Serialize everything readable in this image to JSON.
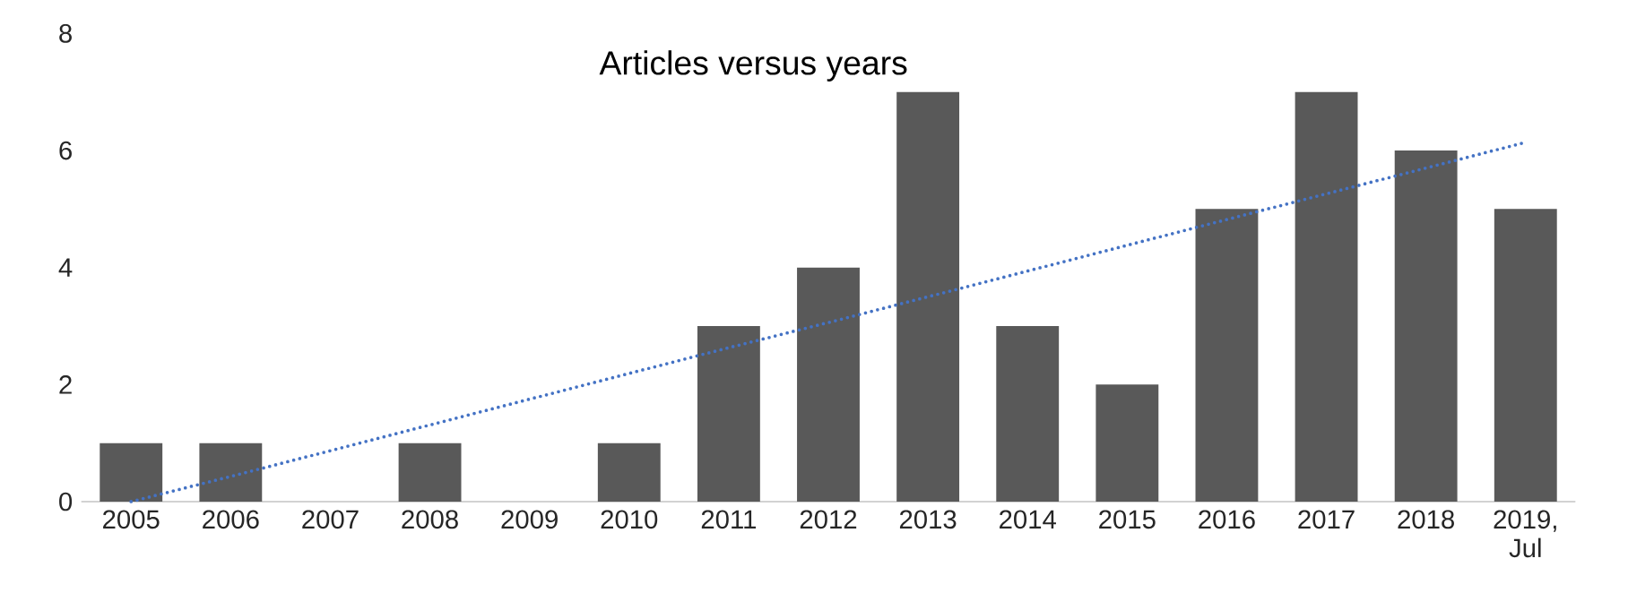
{
  "chart_data": {
    "type": "bar",
    "title": "Articles versus years",
    "categories": [
      "2005",
      "2006",
      "2007",
      "2008",
      "2009",
      "2010",
      "2011",
      "2012",
      "2013",
      "2014",
      "2015",
      "2016",
      "2017",
      "2018",
      "2019, Jul"
    ],
    "series": [
      {
        "color": "#595959",
        "values": [
          1,
          1,
          0,
          1,
          0,
          1,
          3,
          4,
          7,
          3,
          2,
          5,
          7,
          6,
          5
        ]
      },
      {
        "type": "line",
        "color": "#4472c4",
        "line_style": "dotted",
        "values": [
          0.0,
          0.43,
          0.87,
          1.31,
          1.75,
          2.19,
          2.63,
          3.06,
          3.5,
          3.94,
          4.38,
          4.82,
          5.26,
          5.7,
          6.14
        ]
      }
    ],
    "ylim": [
      0,
      8
    ],
    "yticks": [
      0,
      2,
      4,
      6,
      8
    ],
    "grid": false
  }
}
